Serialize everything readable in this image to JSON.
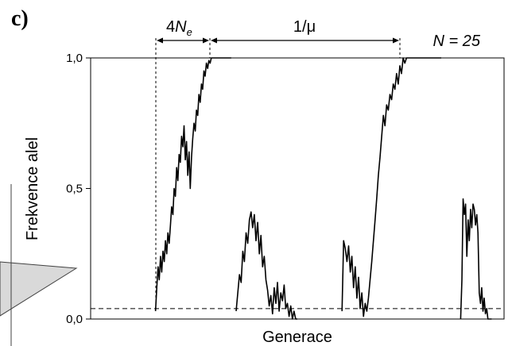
{
  "panel_label": "c)",
  "annotations": {
    "n_label": "N = 25",
    "ne_label_prefix": "4",
    "ne_label_var": "N",
    "ne_label_sub": "e",
    "mu_label": "1/μ"
  },
  "colors": {
    "line": "#000000",
    "callout_fill": "#d9d9d9",
    "callout_stroke": "#404040"
  },
  "chart_data": {
    "type": "line",
    "title": "",
    "xlabel": "Generace",
    "ylabel": "Frekvence alel",
    "y_ticks": [
      "0,0",
      "0,5",
      "1,0"
    ],
    "y_tick_values": [
      0,
      0.5,
      1
    ],
    "ylim": [
      0,
      1
    ],
    "xlim": [
      0,
      1000
    ],
    "x_ticks_shown": false,
    "threshold": 0.04,
    "grid": false,
    "series": [
      {
        "x": [
          157,
          160,
          163,
          166,
          169,
          172,
          175,
          178,
          181,
          184,
          187,
          190,
          193,
          196,
          199,
          202,
          205,
          208,
          211,
          214,
          217,
          220,
          223,
          226,
          229,
          232,
          235,
          238,
          241,
          244,
          247,
          250,
          253,
          256,
          259,
          262,
          265,
          268,
          271,
          274,
          277,
          280,
          283,
          286,
          289,
          292,
          295,
          298,
          301,
          304,
          307,
          310,
          313,
          316,
          319,
          322,
          325,
          328,
          331,
          334,
          337,
          340
        ],
        "y": [
          0.03,
          0.12,
          0.2,
          0.15,
          0.24,
          0.18,
          0.26,
          0.22,
          0.3,
          0.25,
          0.33,
          0.29,
          0.36,
          0.43,
          0.4,
          0.5,
          0.47,
          0.58,
          0.53,
          0.63,
          0.6,
          0.7,
          0.66,
          0.74,
          0.61,
          0.68,
          0.55,
          0.64,
          0.5,
          0.62,
          0.69,
          0.75,
          0.72,
          0.8,
          0.78,
          0.86,
          0.83,
          0.9,
          0.88,
          0.95,
          0.93,
          0.98,
          0.96,
          0.99,
          0.98,
          1.0,
          1.0,
          1.0,
          1.0,
          1.0,
          1.0,
          1.0,
          1.0,
          1.0,
          1.0,
          1.0,
          1.0,
          1.0,
          1.0,
          1.0,
          1.0,
          1.0
        ]
      },
      {
        "x": [
          352,
          356,
          360,
          364,
          368,
          372,
          376,
          380,
          384,
          388,
          392,
          396,
          400,
          404,
          408,
          412,
          416,
          420,
          424,
          428,
          432,
          436,
          440,
          444,
          448,
          452,
          456,
          460,
          464,
          468,
          472,
          476,
          480,
          484,
          488,
          492,
          496,
          500
        ],
        "y": [
          0.03,
          0.1,
          0.17,
          0.14,
          0.26,
          0.22,
          0.33,
          0.29,
          0.38,
          0.41,
          0.35,
          0.4,
          0.3,
          0.37,
          0.25,
          0.32,
          0.2,
          0.24,
          0.15,
          0.11,
          0.05,
          0.09,
          0.02,
          0.12,
          0.06,
          0.14,
          0.03,
          0.1,
          0.07,
          0.13,
          0.04,
          0.06,
          0.01,
          0.05,
          0.0,
          0.03,
          0.0,
          0.0
        ]
      },
      {
        "x": [
          608,
          612,
          616,
          620,
          624,
          628,
          632,
          636,
          640,
          644,
          648,
          652,
          656,
          660,
          664,
          668,
          672,
          676,
          680,
          684,
          688,
          692,
          696,
          700,
          704,
          708,
          712,
          716,
          720,
          724,
          728,
          732,
          736,
          740,
          744,
          748,
          752,
          756,
          760,
          764,
          768,
          772,
          776,
          780,
          784,
          788,
          792,
          796,
          800,
          804,
          808,
          812,
          816,
          820,
          824,
          828,
          832,
          836,
          840,
          844,
          848
        ],
        "y": [
          0.03,
          0.3,
          0.27,
          0.22,
          0.28,
          0.18,
          0.24,
          0.12,
          0.2,
          0.08,
          0.16,
          0.04,
          0.1,
          0.01,
          0.06,
          0.03,
          0.08,
          0.15,
          0.22,
          0.3,
          0.38,
          0.46,
          0.55,
          0.62,
          0.7,
          0.78,
          0.74,
          0.82,
          0.8,
          0.86,
          0.84,
          0.9,
          0.88,
          0.94,
          0.9,
          0.97,
          0.94,
          1.0,
          0.98,
          1.0,
          1.0,
          1.0,
          1.0,
          1.0,
          1.0,
          1.0,
          1.0,
          1.0,
          1.0,
          1.0,
          1.0,
          1.0,
          1.0,
          1.0,
          1.0,
          1.0,
          1.0,
          1.0,
          1.0,
          1.0,
          1.0
        ]
      },
      {
        "x": [
          895,
          898,
          901,
          904,
          907,
          910,
          913,
          916,
          919,
          922,
          925,
          928,
          931,
          934,
          937,
          940,
          943,
          946,
          949,
          952,
          955,
          958,
          961,
          964,
          967,
          970
        ],
        "y": [
          0.0,
          0.15,
          0.46,
          0.4,
          0.44,
          0.24,
          0.38,
          0.3,
          0.42,
          0.35,
          0.44,
          0.42,
          0.36,
          0.4,
          0.33,
          0.1,
          0.06,
          0.12,
          0.03,
          0.08,
          0.02,
          0.04,
          0.0,
          0.0,
          0.0,
          0.0
        ]
      }
    ]
  }
}
